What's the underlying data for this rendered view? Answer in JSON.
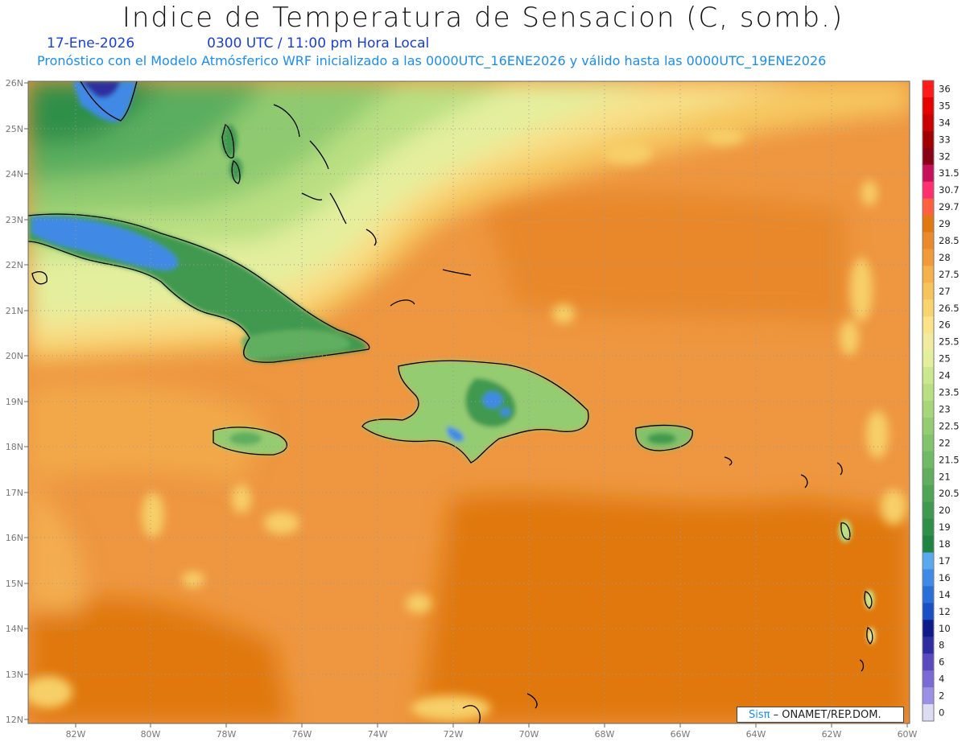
{
  "header": {
    "title": "Indice de Temperatura de Sensacion (C, somb.)",
    "date": "17-Ene-2026",
    "time": "0300 UTC / 11:00 pm Hora Local",
    "model_info": "Pronóstico con el Modelo Atmósferico WRF inicializado a las 0000UTC_16ENE2026 y válido hasta las  0000UTC_19ENE2026"
  },
  "axes": {
    "lat_labels": [
      "26N",
      "25N",
      "24N",
      "23N",
      "22N",
      "21N",
      "20N",
      "19N",
      "18N",
      "17N",
      "16N",
      "15N",
      "14N",
      "13N",
      "12N"
    ],
    "lon_labels": [
      "82W",
      "80W",
      "78W",
      "76W",
      "74W",
      "72W",
      "70W",
      "68W",
      "66W",
      "64W",
      "62W",
      "60W"
    ]
  },
  "colorbar": {
    "levels": [
      "36",
      "35",
      "34",
      "33",
      "32",
      "31.5",
      "30.7",
      "29.7",
      "29",
      "28.5",
      "28",
      "27.5",
      "27",
      "26.5",
      "26",
      "25.5",
      "25",
      "24",
      "23.5",
      "23",
      "22.5",
      "22",
      "21.5",
      "21",
      "20.5",
      "20",
      "19",
      "18",
      "17",
      "16",
      "14",
      "12",
      "10",
      "8",
      "6",
      "4",
      "2",
      "0"
    ],
    "colors": [
      "#ff1a1a",
      "#e60000",
      "#c80000",
      "#a00000",
      "#8a0014",
      "#c8105a",
      "#ff3070",
      "#ff6040",
      "#e07a10",
      "#ea8a2a",
      "#f09a3a",
      "#f5b24a",
      "#f6c45c",
      "#f8d46e",
      "#fbe38a",
      "#f2eaa0",
      "#e4ef9e",
      "#cce88e",
      "#b9df82",
      "#a6d57a",
      "#94cc72",
      "#82c36b",
      "#70b965",
      "#60ae5e",
      "#50a456",
      "#3f994f",
      "#2e8f48",
      "#1f8442",
      "#5aa8ee",
      "#3f8ae6",
      "#2a6ed8",
      "#1a4fc6",
      "#0c1a8a",
      "#2d2da0",
      "#5a4ac0",
      "#7a6ad4",
      "#9a90e6",
      "#dcdcf4"
    ]
  },
  "credit": {
    "logo": "Sisπ",
    "text": "– ONAMET/REP.DOM."
  }
}
